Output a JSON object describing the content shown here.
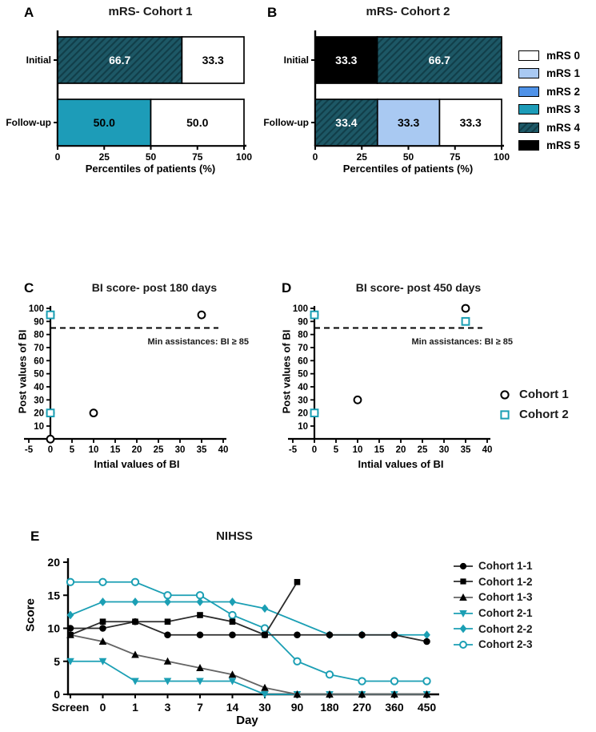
{
  "colors": {
    "teal_line": "#1b9fb4",
    "black": "#000000",
    "gray_line": "#646464",
    "dark_line": "#2b2b2b",
    "mrs_fill": {
      "mRS 0": "#ffffff",
      "mRS 1": "#a9c9f2",
      "mRS 2": "#4f92e8",
      "mRS 3": "#1d9cb8",
      "mRS 4": "#1d5866",
      "mRS 5": "#000000"
    },
    "mrs4_hatch_line": "#113e49"
  },
  "legends": {
    "mrs": {
      "items": [
        {
          "label": "mRS 0",
          "fill": "#ffffff",
          "hatch": false
        },
        {
          "label": "mRS 1",
          "fill": "#a9c9f2",
          "hatch": false
        },
        {
          "label": "mRS 2",
          "fill": "#4f92e8",
          "hatch": false
        },
        {
          "label": "mRS 3",
          "fill": "#1d9cb8",
          "hatch": false
        },
        {
          "label": "mRS 4",
          "fill": "#1d5866",
          "hatch": true
        },
        {
          "label": "mRS 5",
          "fill": "#000000",
          "hatch": false
        }
      ]
    },
    "cohort": {
      "items": [
        {
          "label": "Cohort 1",
          "marker": "circle-open",
          "color": "#000000"
        },
        {
          "label": "Cohort 2",
          "marker": "square-open",
          "color": "#1b9fb4"
        }
      ]
    }
  },
  "chart_data": [
    {
      "panel": "A",
      "type": "bar",
      "orientation": "horizontal-stacked",
      "title": "mRS- Cohort 1",
      "xlabel": "Percentiles of patients (%)",
      "xlim": [
        0,
        100
      ],
      "xticks": [
        0,
        25,
        50,
        75,
        100
      ],
      "rows": [
        {
          "label": "Initial",
          "segments": [
            {
              "value": 66.7,
              "text": "66.7",
              "mrs": "mRS 4"
            },
            {
              "value": 33.3,
              "text": "33.3",
              "mrs": "mRS 0"
            }
          ]
        },
        {
          "label": "Follow-up",
          "segments": [
            {
              "value": 50.0,
              "text": "50.0",
              "mrs": "mRS 3"
            },
            {
              "value": 50.0,
              "text": "50.0",
              "mrs": "mRS 0"
            }
          ]
        }
      ]
    },
    {
      "panel": "B",
      "type": "bar",
      "orientation": "horizontal-stacked",
      "title": "mRS- Cohort 2",
      "xlabel": "Percentiles of patients (%)",
      "xlim": [
        0,
        100
      ],
      "xticks": [
        0,
        25,
        50,
        75,
        100
      ],
      "rows": [
        {
          "label": "Initial",
          "segments": [
            {
              "value": 33.3,
              "text": "33.3",
              "mrs": "mRS 5"
            },
            {
              "value": 66.7,
              "text": "66.7",
              "mrs": "mRS 4"
            }
          ]
        },
        {
          "label": "Follow-up",
          "segments": [
            {
              "value": 33.4,
              "text": "33.4",
              "mrs": "mRS 4"
            },
            {
              "value": 33.3,
              "text": "33.3",
              "mrs": "mRS 1"
            },
            {
              "value": 33.3,
              "text": "33.3",
              "mrs": "mRS 0"
            }
          ]
        }
      ]
    },
    {
      "panel": "C",
      "type": "scatter",
      "title": "BI score- post 180 days",
      "xlabel": "Intial values of BI",
      "ylabel": "Post values of BI",
      "xlim": [
        -5,
        40
      ],
      "xticks": [
        -5,
        0,
        5,
        10,
        15,
        20,
        25,
        30,
        35,
        40
      ],
      "ylim": [
        0,
        100
      ],
      "yticks": [
        10,
        20,
        30,
        40,
        50,
        60,
        70,
        80,
        90,
        100
      ],
      "threshold": {
        "y": 85,
        "label": "Min assistances: BI ≥ 85"
      },
      "series": [
        {
          "name": "Cohort 1",
          "marker": "circle-open",
          "color": "#000000",
          "points": [
            [
              0,
              95
            ],
            [
              0,
              20
            ],
            [
              0,
              0
            ],
            [
              10,
              20
            ],
            [
              35,
              95
            ]
          ]
        },
        {
          "name": "Cohort 2",
          "marker": "square-open",
          "color": "#1b9fb4",
          "points": [
            [
              0,
              95
            ],
            [
              0,
              20
            ]
          ]
        }
      ]
    },
    {
      "panel": "D",
      "type": "scatter",
      "title": "BI score- post 450 days",
      "xlabel": "Intial values of BI",
      "ylabel": "Post values of BI",
      "xlim": [
        -5,
        40
      ],
      "xticks": [
        -5,
        0,
        5,
        10,
        15,
        20,
        25,
        30,
        35,
        40
      ],
      "ylim": [
        0,
        100
      ],
      "yticks": [
        10,
        20,
        30,
        40,
        50,
        60,
        70,
        80,
        90,
        100
      ],
      "threshold": {
        "y": 85,
        "label": "Min assistances: BI ≥ 85"
      },
      "series": [
        {
          "name": "Cohort 1",
          "marker": "circle-open",
          "color": "#000000",
          "points": [
            [
              0,
              95
            ],
            [
              0,
              20
            ],
            [
              10,
              30
            ],
            [
              35,
              100
            ]
          ]
        },
        {
          "name": "Cohort 2",
          "marker": "square-open",
          "color": "#1b9fb4",
          "points": [
            [
              0,
              95
            ],
            [
              0,
              20
            ],
            [
              35,
              90
            ]
          ]
        }
      ]
    },
    {
      "panel": "E",
      "type": "line",
      "title": "NIHSS",
      "xlabel": "Day",
      "ylabel": "Score",
      "categories": [
        "Screen",
        "0",
        "1",
        "3",
        "7",
        "14",
        "30",
        "90",
        "180",
        "270",
        "360",
        "450"
      ],
      "ylim": [
        0,
        20
      ],
      "yticks": [
        0,
        5,
        10,
        15,
        20
      ],
      "series": [
        {
          "name": "Cohort 1-1",
          "marker": "circle-filled",
          "color": "#000000",
          "line_color": "#2b2b2b",
          "values": [
            10,
            10,
            11,
            9,
            9,
            9,
            9,
            9,
            9,
            9,
            9,
            8
          ]
        },
        {
          "name": "Cohort 1-2",
          "marker": "square-filled",
          "color": "#000000",
          "line_color": "#2b2b2b",
          "values": [
            9,
            11,
            11,
            11,
            12,
            11,
            9,
            17,
            null,
            null,
            null,
            null
          ]
        },
        {
          "name": "Cohort 1-3",
          "marker": "triangle-up-filled",
          "color": "#000000",
          "line_color": "#646464",
          "values": [
            9,
            8,
            6,
            5,
            4,
            3,
            1,
            0,
            0,
            0,
            0,
            0
          ]
        },
        {
          "name": "Cohort 2-1",
          "marker": "triangle-down-filled",
          "color": "#1b9fb4",
          "line_color": "#1b9fb4",
          "values": [
            5,
            5,
            2,
            2,
            2,
            2,
            0,
            0,
            0,
            0,
            0,
            0
          ]
        },
        {
          "name": "Cohort 2-2",
          "marker": "diamond-filled",
          "color": "#1b9fb4",
          "line_color": "#1b9fb4",
          "values": [
            12,
            14,
            14,
            14,
            14,
            14,
            13,
            null,
            9,
            9,
            9,
            9
          ]
        },
        {
          "name": "Cohort 2-3",
          "marker": "circle-open",
          "color": "#1b9fb4",
          "line_color": "#1b9fb4",
          "values": [
            17,
            17,
            17,
            15,
            15,
            12,
            10,
            5,
            3,
            2,
            2,
            2
          ]
        }
      ]
    }
  ]
}
